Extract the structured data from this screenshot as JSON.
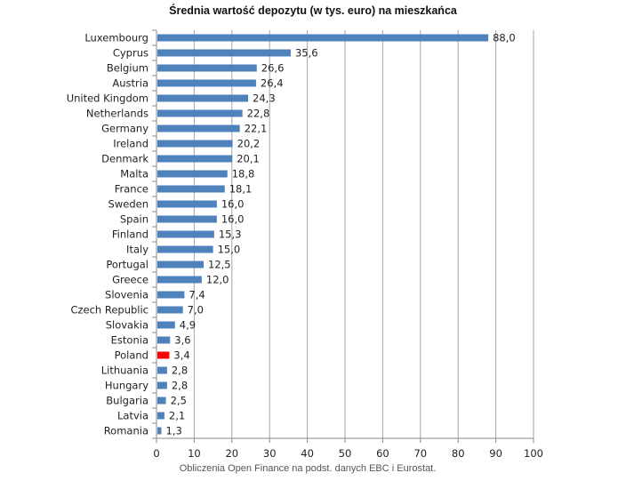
{
  "chart_data": {
    "type": "bar",
    "orientation": "horizontal",
    "title": "Średnia wartość  depozytu (w tys. euro) na mieszkańca",
    "source_note": "Obliczenia Open Finance na podst. danych EBC i Eurostat.",
    "categories": [
      "Luxembourg",
      "Cyprus",
      "Belgium",
      "Austria",
      "United Kingdom",
      "Netherlands",
      "Germany",
      "Ireland",
      "Denmark",
      "Malta",
      "France",
      "Sweden",
      "Spain",
      "Finland",
      "Italy",
      "Portugal",
      "Greece",
      "Slovenia",
      "Czech Republic",
      "Slovakia",
      "Estonia",
      "Poland",
      "Lithuania",
      "Hungary",
      "Bulgaria",
      "Latvia",
      "Romania"
    ],
    "values": [
      88.0,
      35.6,
      26.6,
      26.4,
      24.3,
      22.8,
      22.1,
      20.2,
      20.1,
      18.8,
      18.1,
      16.0,
      16.0,
      15.3,
      15.0,
      12.5,
      12.0,
      7.4,
      7.0,
      4.9,
      3.6,
      3.4,
      2.8,
      2.8,
      2.5,
      2.1,
      1.3
    ],
    "data_labels": [
      "88,0",
      "35,6",
      "26,6",
      "26,4",
      "24,3",
      "22,8",
      "22,1",
      "20,2",
      "20,1",
      "18,8",
      "18,1",
      "16,0",
      "16,0",
      "15,3",
      "15,0",
      "12,5",
      "12,0",
      "7,4",
      "7,0",
      "4,9",
      "3,6",
      "3,4",
      "2,8",
      "2,8",
      "2,5",
      "2,1",
      "1,3"
    ],
    "xlim": [
      0,
      100
    ],
    "xticks": [
      "0",
      "10",
      "20",
      "30",
      "40",
      "50",
      "60",
      "70",
      "80",
      "90",
      "100"
    ],
    "grid": "vertical",
    "colors": {
      "bar": "#4f81bd",
      "highlight": "#ff0000",
      "grid": "#a6a6a6"
    },
    "highlight_category": "Poland"
  }
}
